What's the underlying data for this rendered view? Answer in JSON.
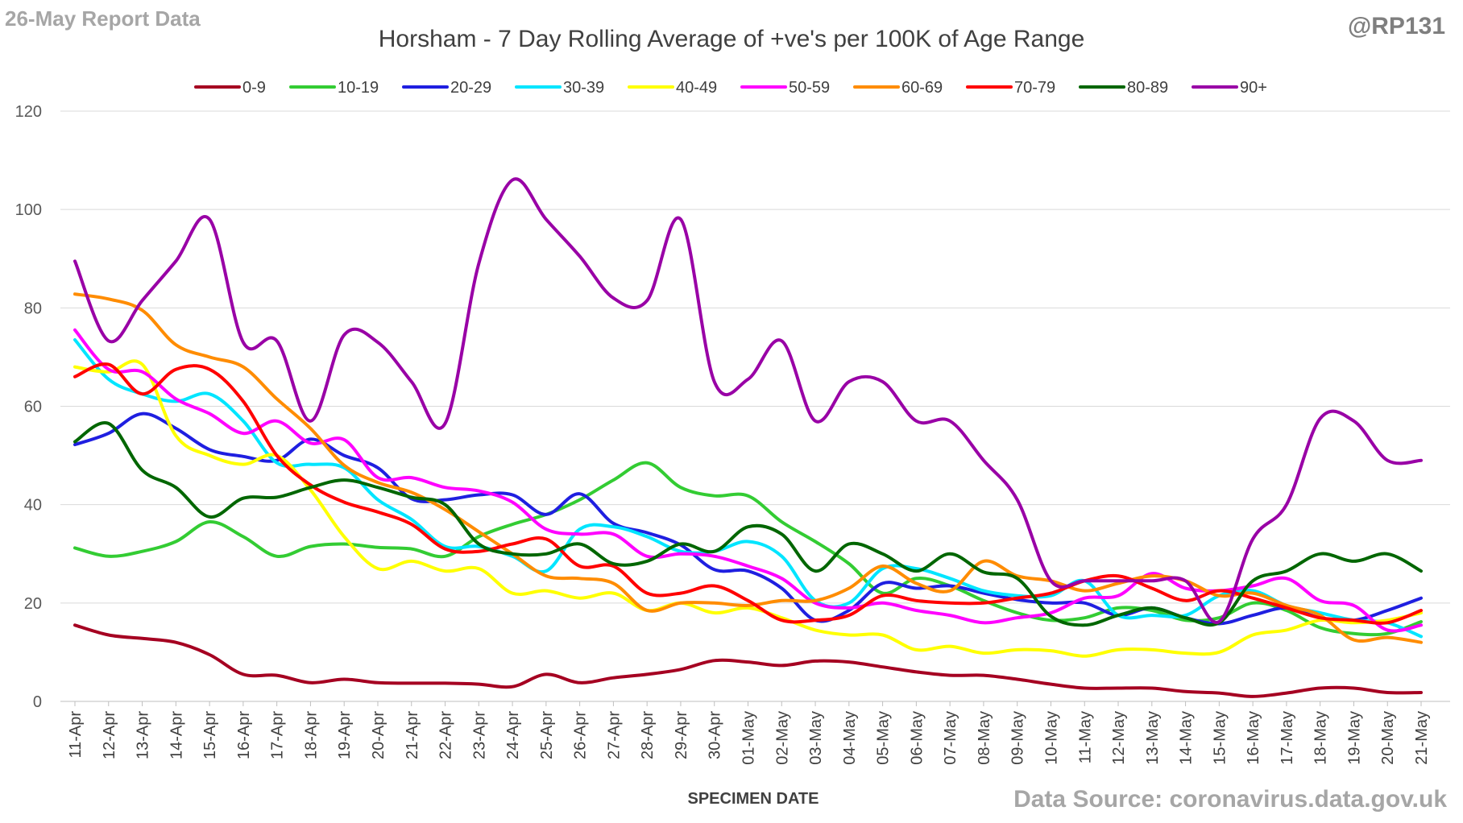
{
  "report_label": "26-May Report Data",
  "handle": "@RP131",
  "source": "Data Source: coronavirus.data.gov.uk",
  "chart_data": {
    "type": "line",
    "title": "Horsham - 7 Day Rolling Average of +ve's per 100K of Age Range",
    "xlabel": "SPECIMEN DATE",
    "ylabel": "",
    "ylim": [
      0,
      120
    ],
    "yticks": [
      0,
      20,
      40,
      60,
      80,
      100,
      120
    ],
    "grid": true,
    "legend_position": "top",
    "categories": [
      "11-Apr",
      "12-Apr",
      "13-Apr",
      "14-Apr",
      "15-Apr",
      "16-Apr",
      "17-Apr",
      "18-Apr",
      "19-Apr",
      "20-Apr",
      "21-Apr",
      "22-Apr",
      "23-Apr",
      "24-Apr",
      "25-Apr",
      "26-Apr",
      "27-Apr",
      "28-Apr",
      "29-Apr",
      "30-Apr",
      "01-May",
      "02-May",
      "03-May",
      "04-May",
      "05-May",
      "06-May",
      "07-May",
      "08-May",
      "09-May",
      "10-May",
      "11-May",
      "12-May",
      "13-May",
      "14-May",
      "15-May",
      "16-May",
      "17-May",
      "18-May",
      "19-May",
      "20-May",
      "21-May"
    ],
    "series": [
      {
        "name": "0-9",
        "color": "#a50021",
        "values": [
          15.5,
          13.5,
          12.8,
          12,
          9.5,
          5.5,
          5.3,
          3.8,
          4.5,
          3.8,
          3.7,
          3.7,
          3.5,
          3,
          5.5,
          3.8,
          4.8,
          5.5,
          6.5,
          8.3,
          8,
          7.3,
          8.2,
          8,
          7,
          6,
          5.3,
          5.3,
          4.5,
          3.5,
          2.7,
          2.7,
          2.7,
          2,
          1.7,
          1,
          1.7,
          2.7,
          2.7,
          1.8,
          1.8
        ]
      },
      {
        "name": "10-19",
        "color": "#33cc33",
        "values": [
          31.2,
          29.5,
          30.5,
          32.5,
          36.5,
          33.5,
          29.5,
          31.5,
          32,
          31.3,
          31,
          29.5,
          33.5,
          36,
          38,
          41,
          45,
          48.5,
          43.5,
          41.8,
          41.8,
          36.5,
          32.5,
          28,
          22,
          25,
          23.5,
          20.5,
          18,
          16.5,
          17,
          19,
          18.5,
          16.5,
          17,
          20,
          18.5,
          15,
          13.8,
          13.8,
          16.2
        ]
      },
      {
        "name": "20-29",
        "color": "#1f1fe0",
        "values": [
          52.2,
          54.5,
          58.5,
          55.5,
          51.2,
          49.8,
          49,
          53.3,
          50,
          47.5,
          41.2,
          41,
          42,
          42,
          38,
          42.2,
          36.2,
          34.3,
          31.8,
          26.8,
          26.5,
          23,
          16.5,
          18.5,
          24,
          23,
          23.5,
          22,
          20.7,
          20,
          20,
          17.5,
          19,
          17,
          15.8,
          17.5,
          19,
          17,
          16.5,
          18.5,
          21
        ]
      },
      {
        "name": "30-39",
        "color": "#00e5ff",
        "values": [
          73.5,
          65.5,
          62.5,
          61,
          62.5,
          57,
          48.5,
          48.2,
          47.5,
          41,
          37,
          31.5,
          31.5,
          29.5,
          26.5,
          35,
          35.5,
          33.5,
          30.5,
          30.5,
          32.5,
          29.5,
          20.5,
          20,
          27,
          27,
          25,
          22.5,
          21.5,
          21.5,
          24.5,
          17.5,
          17.5,
          17.5,
          21.5,
          22.5,
          19.5,
          18,
          16.5,
          16,
          13.2
        ]
      },
      {
        "name": "40-49",
        "color": "#ffff00",
        "values": [
          68,
          67,
          68.5,
          54,
          50,
          48.2,
          50,
          43,
          33.5,
          27,
          28.5,
          26.5,
          27,
          22,
          22.5,
          21,
          22,
          18.5,
          20,
          18,
          19,
          17,
          14.5,
          13.5,
          13.5,
          10.5,
          11.2,
          9.8,
          10.5,
          10.3,
          9.2,
          10.5,
          10.5,
          9.8,
          10,
          13.5,
          14.5,
          16.5,
          16,
          16.5,
          18
        ]
      },
      {
        "name": "50-59",
        "color": "#ff00ff",
        "values": [
          75.5,
          67.5,
          67,
          61.5,
          58.5,
          54.5,
          57,
          52.5,
          53.2,
          45.5,
          45.5,
          43.5,
          42.8,
          40.5,
          35,
          34,
          34,
          29.5,
          30,
          29.5,
          27.5,
          25,
          20,
          19,
          20,
          18.5,
          17.5,
          16,
          17,
          18,
          21,
          21.5,
          26,
          23,
          22.5,
          23.5,
          25,
          20.5,
          19.5,
          14.5,
          15.5
        ]
      },
      {
        "name": "60-69",
        "color": "#ff8c00",
        "values": [
          82.8,
          81.8,
          79.5,
          72.5,
          70,
          68,
          61.5,
          55.5,
          48,
          44.5,
          42.5,
          39,
          34.5,
          30,
          25.5,
          25,
          24,
          18.5,
          20,
          20,
          19.5,
          20.5,
          20.5,
          23,
          27.5,
          24,
          22.5,
          28.5,
          25.5,
          24.5,
          22.5,
          24,
          25.5,
          24.5,
          21.5,
          22,
          19.5,
          17.5,
          12.5,
          13,
          12
        ]
      },
      {
        "name": "70-79",
        "color": "#ff0000",
        "values": [
          66,
          68.5,
          62.5,
          67.5,
          67.5,
          61,
          50,
          44,
          40.5,
          38.5,
          36,
          31,
          30.5,
          32,
          33,
          27.5,
          27.5,
          22,
          22,
          23.5,
          20.5,
          16.5,
          16.5,
          17.5,
          21.5,
          20.5,
          20,
          20,
          21,
          22,
          24.5,
          25.5,
          23,
          20.5,
          22.5,
          21,
          19,
          17,
          16.5,
          16,
          18.5
        ]
      },
      {
        "name": "80-89",
        "color": "#006600",
        "values": [
          52.8,
          56.5,
          47,
          43.5,
          37.5,
          41.3,
          41.5,
          43.5,
          45,
          43.5,
          41.5,
          40,
          32,
          30,
          30,
          32,
          28,
          28.5,
          32,
          30.5,
          35.5,
          34,
          26.5,
          32,
          30,
          26.5,
          30,
          26.3,
          25,
          17.3,
          15.5,
          17.5,
          19,
          17,
          16,
          24.5,
          26.5,
          30,
          28.5,
          30,
          26.5
        ]
      },
      {
        "name": "90+",
        "color": "#9900a6",
        "values": [
          89.5,
          73.3,
          81.5,
          89.5,
          98,
          73,
          73.3,
          57,
          74.5,
          73,
          65,
          56.5,
          89,
          106,
          98,
          90.5,
          82,
          81.5,
          98,
          65,
          65.5,
          73.3,
          57,
          65,
          65,
          57,
          57,
          49,
          41,
          24.5,
          24.5,
          24.5,
          24.5,
          24.5,
          16.2,
          33,
          40,
          57.5,
          57,
          49,
          49
        ]
      }
    ]
  }
}
